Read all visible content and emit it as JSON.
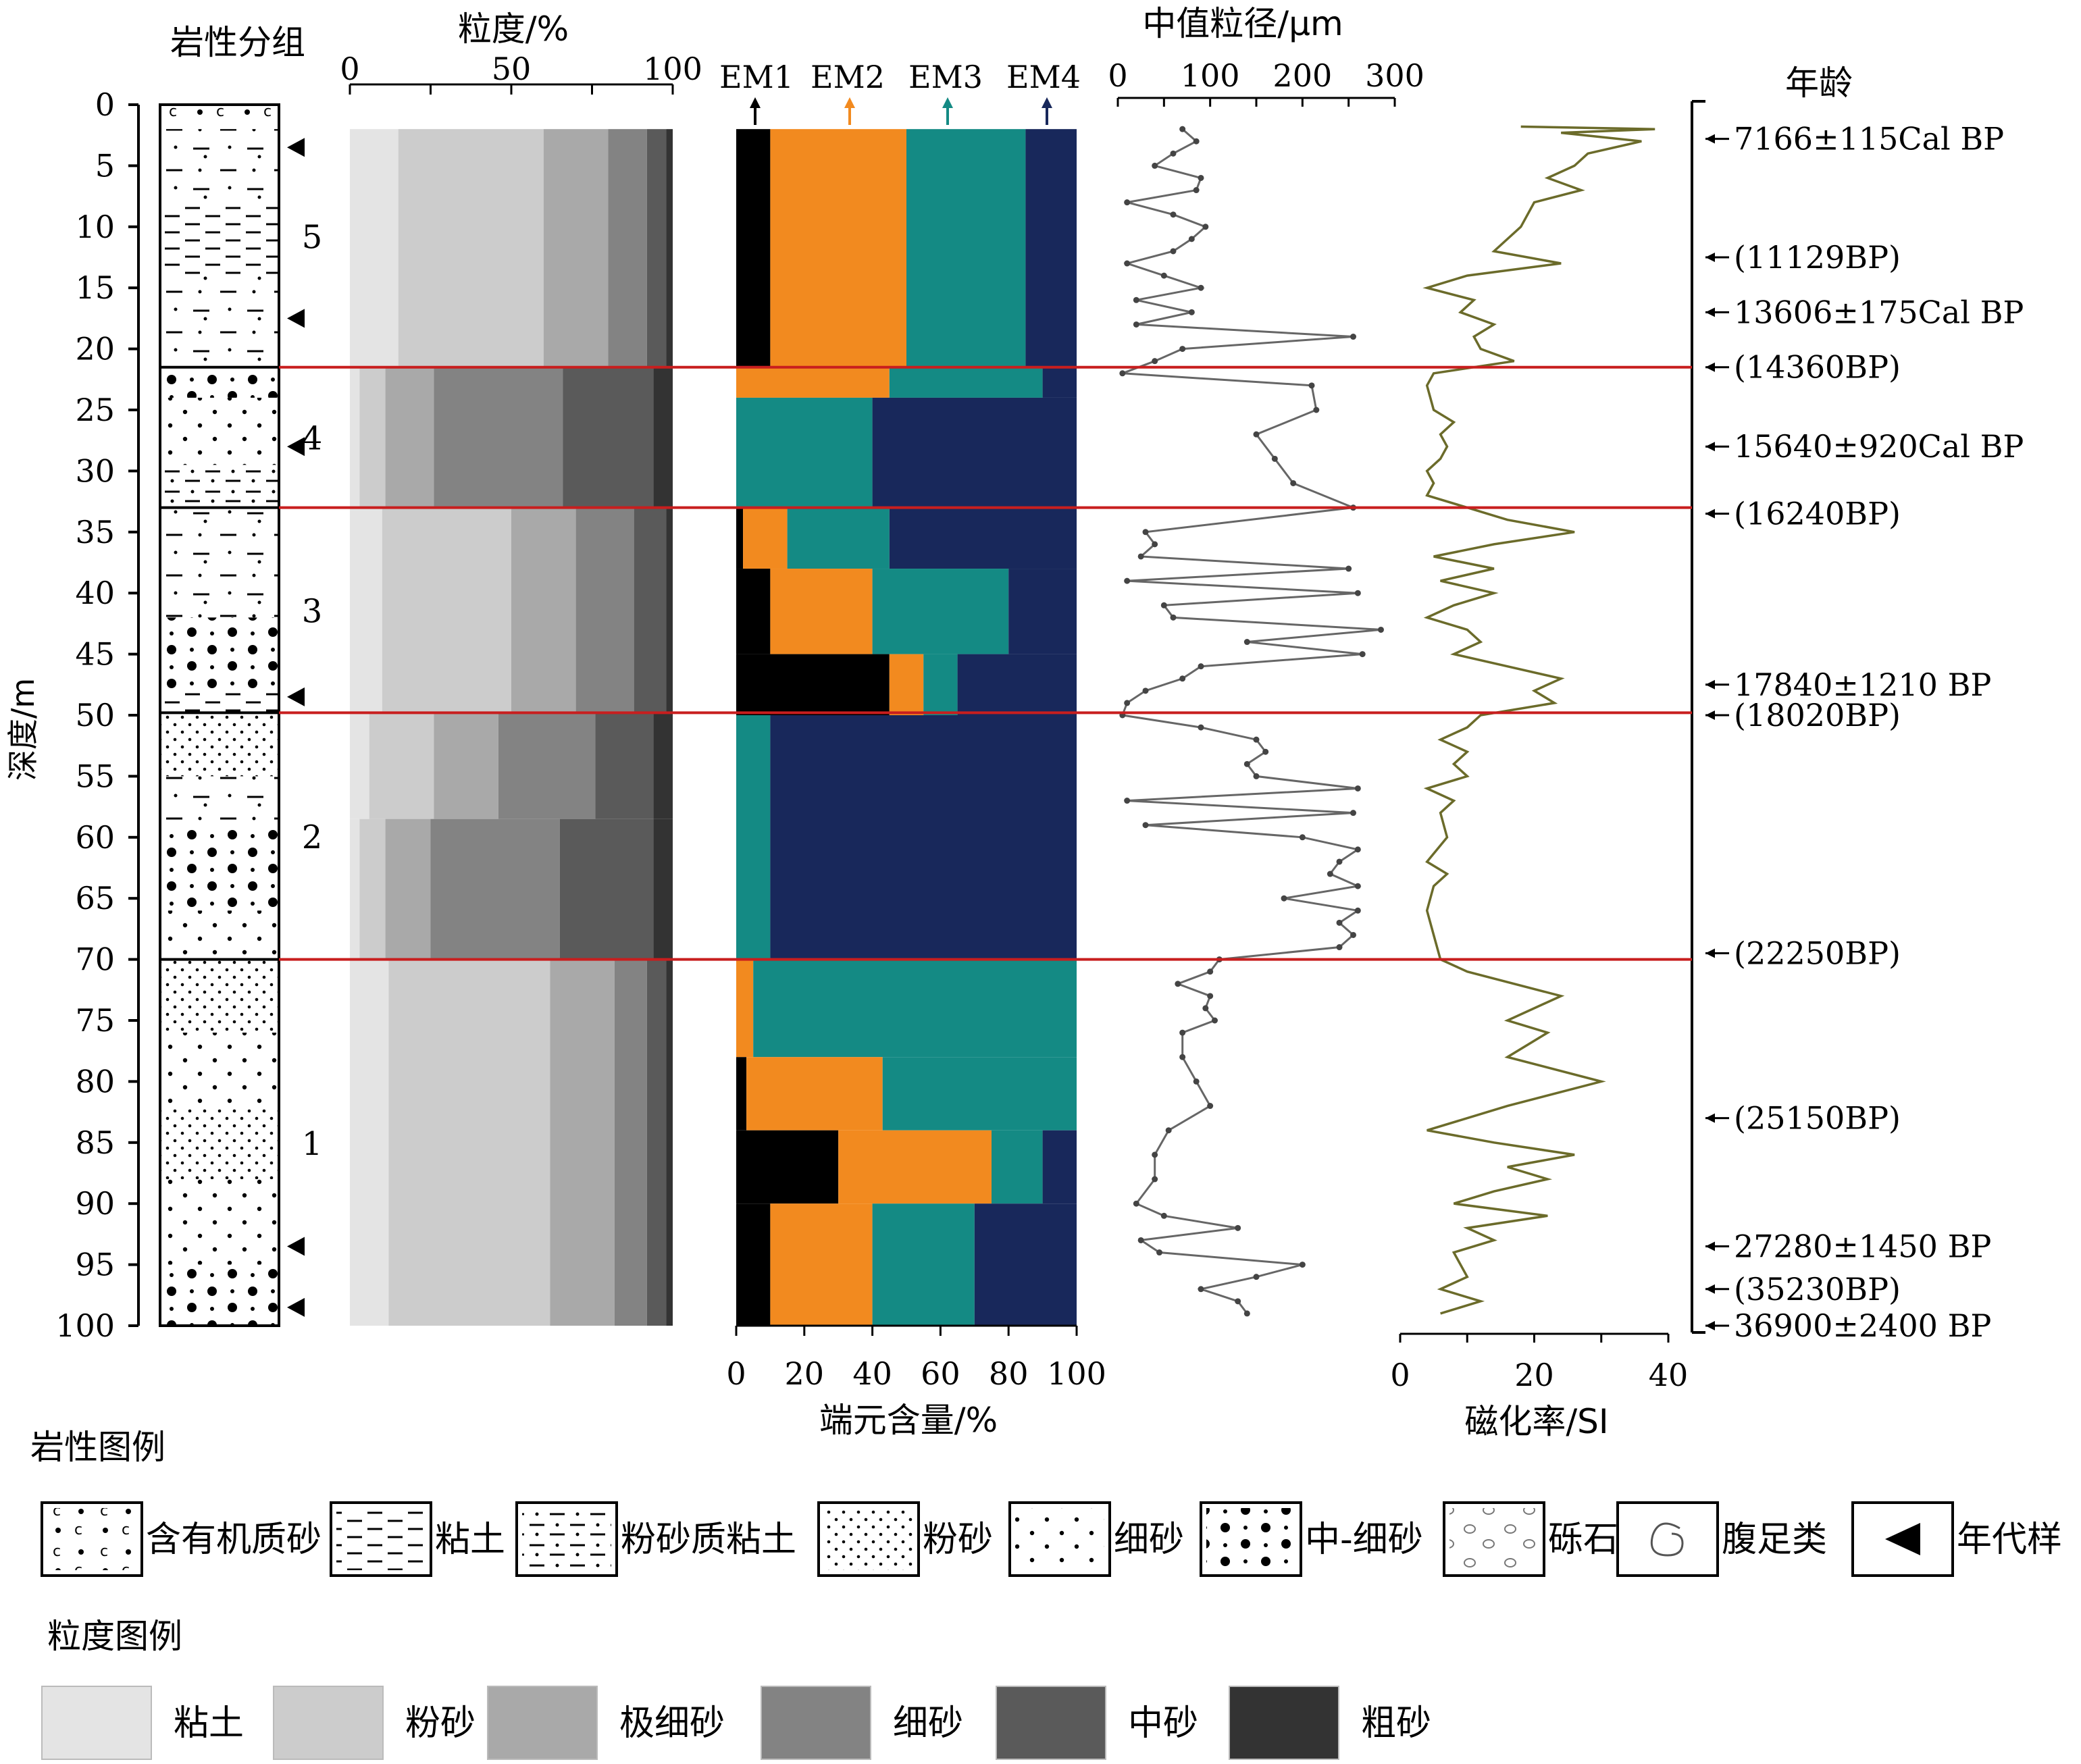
{
  "chart_data": {
    "type": "composite-core-log",
    "depth_axis": {
      "label": "深度/m",
      "ticks": [
        "0",
        "5",
        "10",
        "15",
        "20",
        "25",
        "30",
        "35",
        "40",
        "45",
        "50",
        "55",
        "60",
        "65",
        "70",
        "75",
        "80",
        "85",
        "90",
        "95",
        "100"
      ],
      "range": [
        0,
        100
      ]
    },
    "lithology": {
      "title": "岩性分组",
      "group_depths": [
        0,
        21.5,
        33,
        49.8,
        70,
        100
      ],
      "units": [
        {
          "label": "5",
          "top": 0,
          "bottom": 21.5
        },
        {
          "label": "4",
          "top": 21.5,
          "bottom": 33
        },
        {
          "label": "3",
          "top": 33,
          "bottom": 49.8
        },
        {
          "label": "2",
          "top": 49.8,
          "bottom": 70
        },
        {
          "label": "1",
          "top": 70,
          "bottom": 100
        }
      ],
      "age_sample_depths": [
        3.5,
        17.5,
        28,
        48.5,
        93.5,
        98.5
      ]
    },
    "grain_size": {
      "title": "粒度/%",
      "xticks": [
        "0",
        "50",
        "100"
      ],
      "range": [
        0,
        100
      ],
      "classes": [
        "粘土",
        "粉砂",
        "极细砂",
        "细砂",
        "中砂",
        "粗砂"
      ],
      "colors": [
        "#e4e4e4",
        "#cccccc",
        "#a9a9a9",
        "#838383",
        "#5a5a5a",
        "#333333"
      ],
      "segments": [
        {
          "from": 2,
          "to": 21.5,
          "c": [
            15,
            45,
            20,
            12,
            6,
            2
          ]
        },
        {
          "from": 21.5,
          "to": 33,
          "c": [
            3,
            8,
            15,
            40,
            28,
            6
          ]
        },
        {
          "from": 33,
          "to": 49.8,
          "c": [
            10,
            40,
            20,
            18,
            10,
            2
          ]
        },
        {
          "from": 49.8,
          "to": 58.5,
          "c": [
            6,
            20,
            20,
            30,
            18,
            6
          ]
        },
        {
          "from": 58.5,
          "to": 70,
          "c": [
            3,
            8,
            14,
            40,
            29,
            6
          ]
        },
        {
          "from": 70,
          "to": 100,
          "c": [
            12,
            50,
            20,
            10,
            6,
            2
          ]
        }
      ]
    },
    "end_members": {
      "title": "端元含量/%",
      "xticks": [
        "0",
        "20",
        "40",
        "60",
        "80",
        "100"
      ],
      "range": [
        0,
        100
      ],
      "names": [
        "EM1",
        "EM2",
        "EM3",
        "EM4"
      ],
      "colors": [
        "#000000",
        "#f28a1f",
        "#148a84",
        "#18285b"
      ],
      "segments": [
        {
          "from": 2,
          "to": 21.5,
          "v": [
            10,
            40,
            35,
            15
          ]
        },
        {
          "from": 21.5,
          "to": 24,
          "v": [
            0,
            45,
            45,
            10
          ]
        },
        {
          "from": 24,
          "to": 33,
          "v": [
            0,
            0,
            40,
            60
          ]
        },
        {
          "from": 33,
          "to": 38,
          "v": [
            2,
            13,
            30,
            55
          ]
        },
        {
          "from": 38,
          "to": 45,
          "v": [
            10,
            30,
            40,
            20
          ]
        },
        {
          "from": 45,
          "to": 50,
          "v": [
            45,
            10,
            10,
            35
          ]
        },
        {
          "from": 50,
          "to": 70,
          "v": [
            0,
            0,
            10,
            90
          ]
        },
        {
          "from": 70,
          "to": 78,
          "v": [
            0,
            5,
            95,
            0
          ]
        },
        {
          "from": 78,
          "to": 84,
          "v": [
            3,
            40,
            57,
            0
          ]
        },
        {
          "from": 84,
          "to": 90,
          "v": [
            30,
            45,
            15,
            10
          ]
        },
        {
          "from": 90,
          "to": 100,
          "v": [
            10,
            30,
            30,
            30
          ]
        }
      ]
    },
    "median_grain_size": {
      "title": "中值粒径/μm",
      "xticks": [
        "0",
        "100",
        "200",
        "300"
      ],
      "range": [
        0,
        300
      ],
      "points": [
        [
          2,
          70
        ],
        [
          3,
          85
        ],
        [
          4,
          60
        ],
        [
          5,
          40
        ],
        [
          6,
          90
        ],
        [
          7,
          85
        ],
        [
          8,
          10
        ],
        [
          9,
          60
        ],
        [
          10,
          95
        ],
        [
          11,
          80
        ],
        [
          12,
          60
        ],
        [
          13,
          10
        ],
        [
          14,
          50
        ],
        [
          15,
          90
        ],
        [
          16,
          20
        ],
        [
          17,
          80
        ],
        [
          18,
          20
        ],
        [
          19,
          255
        ],
        [
          20,
          70
        ],
        [
          21,
          40
        ],
        [
          22,
          5
        ],
        [
          23,
          210
        ],
        [
          25,
          215
        ],
        [
          27,
          150
        ],
        [
          29,
          170
        ],
        [
          31,
          190
        ],
        [
          33,
          255
        ],
        [
          35,
          30
        ],
        [
          36,
          40
        ],
        [
          37,
          25
        ],
        [
          38,
          250
        ],
        [
          39,
          10
        ],
        [
          40,
          260
        ],
        [
          41,
          50
        ],
        [
          42,
          60
        ],
        [
          43,
          285
        ],
        [
          44,
          140
        ],
        [
          45,
          265
        ],
        [
          46,
          90
        ],
        [
          47,
          70
        ],
        [
          48,
          30
        ],
        [
          49,
          10
        ],
        [
          50,
          5
        ],
        [
          51,
          90
        ],
        [
          52,
          150
        ],
        [
          53,
          160
        ],
        [
          54,
          140
        ],
        [
          55,
          150
        ],
        [
          56,
          260
        ],
        [
          57,
          10
        ],
        [
          58,
          255
        ],
        [
          59,
          30
        ],
        [
          60,
          200
        ],
        [
          61,
          260
        ],
        [
          62,
          240
        ],
        [
          63,
          230
        ],
        [
          64,
          260
        ],
        [
          65,
          180
        ],
        [
          66,
          260
        ],
        [
          67,
          240
        ],
        [
          68,
          255
        ],
        [
          69,
          240
        ],
        [
          70,
          110
        ],
        [
          71,
          100
        ],
        [
          72,
          65
        ],
        [
          73,
          100
        ],
        [
          74,
          95
        ],
        [
          75,
          105
        ],
        [
          76,
          70
        ],
        [
          78,
          70
        ],
        [
          80,
          85
        ],
        [
          82,
          100
        ],
        [
          84,
          55
        ],
        [
          86,
          40
        ],
        [
          88,
          40
        ],
        [
          90,
          20
        ],
        [
          91,
          50
        ],
        [
          92,
          130
        ],
        [
          93,
          25
        ],
        [
          94,
          45
        ],
        [
          95,
          200
        ],
        [
          96,
          150
        ],
        [
          97,
          90
        ],
        [
          98,
          130
        ],
        [
          99,
          140
        ]
      ]
    },
    "magnetic_susceptibility": {
      "title": "磁化率/SI",
      "xticks": [
        "0",
        "20",
        "40"
      ],
      "range": [
        0,
        40
      ],
      "points": [
        [
          1.8,
          18
        ],
        [
          2,
          38
        ],
        [
          2.3,
          24
        ],
        [
          3,
          36
        ],
        [
          4,
          28
        ],
        [
          5,
          26
        ],
        [
          6,
          22
        ],
        [
          7,
          27
        ],
        [
          8,
          20
        ],
        [
          10,
          18
        ],
        [
          12,
          14
        ],
        [
          13,
          24
        ],
        [
          14,
          10
        ],
        [
          15,
          4
        ],
        [
          16,
          11
        ],
        [
          17,
          9
        ],
        [
          18,
          14
        ],
        [
          19,
          11
        ],
        [
          20,
          12
        ],
        [
          21,
          17
        ],
        [
          22,
          5
        ],
        [
          23,
          4
        ],
        [
          25,
          5
        ],
        [
          26,
          8
        ],
        [
          27,
          6
        ],
        [
          28,
          7
        ],
        [
          29,
          6
        ],
        [
          30,
          4
        ],
        [
          31,
          5
        ],
        [
          32,
          4
        ],
        [
          33,
          10
        ],
        [
          34,
          16
        ],
        [
          35,
          26
        ],
        [
          36,
          14
        ],
        [
          37,
          5
        ],
        [
          38,
          14
        ],
        [
          39,
          6
        ],
        [
          40,
          14
        ],
        [
          41,
          8
        ],
        [
          42,
          4
        ],
        [
          43,
          10
        ],
        [
          44,
          12
        ],
        [
          45,
          8
        ],
        [
          46,
          16
        ],
        [
          47,
          24
        ],
        [
          48,
          20
        ],
        [
          49,
          23
        ],
        [
          50,
          12
        ],
        [
          51,
          10
        ],
        [
          52,
          6
        ],
        [
          53,
          10
        ],
        [
          54,
          8
        ],
        [
          55,
          10
        ],
        [
          56,
          4
        ],
        [
          57,
          8
        ],
        [
          58,
          6
        ],
        [
          60,
          7
        ],
        [
          62,
          4
        ],
        [
          63,
          7
        ],
        [
          64,
          5
        ],
        [
          66,
          4
        ],
        [
          68,
          5
        ],
        [
          70,
          6
        ],
        [
          71,
          10
        ],
        [
          73,
          24
        ],
        [
          75,
          16
        ],
        [
          76,
          22
        ],
        [
          78,
          16
        ],
        [
          80,
          30
        ],
        [
          82,
          16
        ],
        [
          84,
          4
        ],
        [
          85,
          14
        ],
        [
          86,
          26
        ],
        [
          87,
          16
        ],
        [
          88,
          22
        ],
        [
          89,
          14
        ],
        [
          90,
          8
        ],
        [
          91,
          22
        ],
        [
          92,
          10
        ],
        [
          93,
          14
        ],
        [
          94,
          8
        ],
        [
          96,
          10
        ],
        [
          97,
          6
        ],
        [
          98,
          12
        ],
        [
          99,
          6
        ]
      ]
    },
    "ages": {
      "title": "年龄",
      "items": [
        {
          "depth": 2.8,
          "label": "7166±115Cal BP"
        },
        {
          "depth": 12.5,
          "label": "(11129BP)"
        },
        {
          "depth": 17,
          "label": "13606±175Cal BP"
        },
        {
          "depth": 21.5,
          "label": "(14360BP)"
        },
        {
          "depth": 28,
          "label": "15640±920Cal BP"
        },
        {
          "depth": 33.5,
          "label": "(16240BP)"
        },
        {
          "depth": 47.5,
          "label": "17840±1210 BP"
        },
        {
          "depth": 50,
          "label": "(18020BP)"
        },
        {
          "depth": 69.5,
          "label": "(22250BP)"
        },
        {
          "depth": 83,
          "label": "(25150BP)"
        },
        {
          "depth": 93.5,
          "label": "27280±1450 BP"
        },
        {
          "depth": 97,
          "label": "(35230BP)"
        },
        {
          "depth": 100,
          "label": "36900±2400 BP"
        }
      ]
    },
    "boundary_depths": [
      21.5,
      33,
      49.8,
      70
    ]
  },
  "legend_lithology": {
    "title": "岩性图例",
    "items": [
      "含有机质砂",
      "粘土",
      "粉砂质粘土",
      "粉砂",
      "细砂",
      "中-细砂",
      "砾石",
      "腹足类",
      "年代样"
    ]
  },
  "legend_grain": {
    "title": "粒度图例",
    "items": [
      "粘土",
      "粉砂",
      "极细砂",
      "细砂",
      "中砂",
      "粗砂"
    ]
  },
  "colors": {
    "boundary": "#c81e1e",
    "median_line": "#666666",
    "mag_line": "#6b6b2a"
  }
}
